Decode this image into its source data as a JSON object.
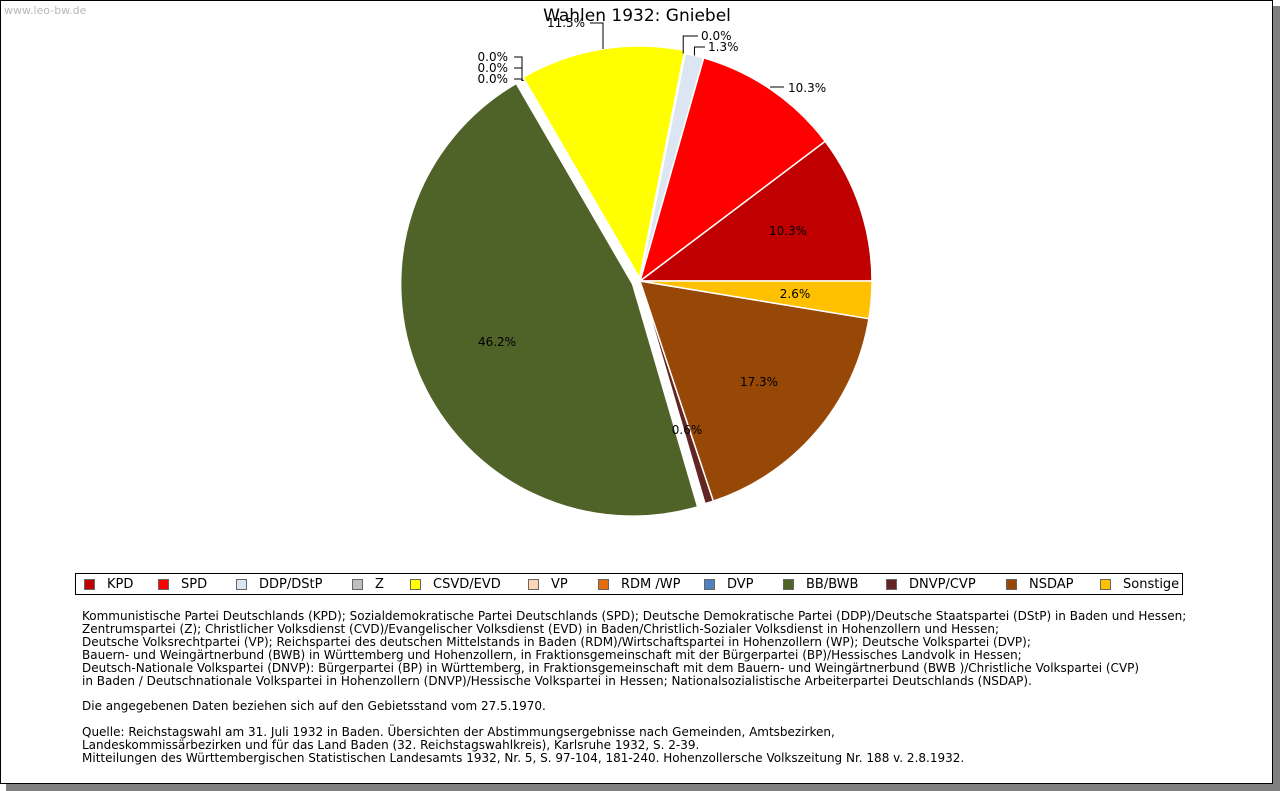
{
  "watermark": "www.leo-bw.de",
  "colors": {
    "KPD": "#c00000",
    "SPD": "#ff0000",
    "DDP": "#dce6f2",
    "Z": "#c0c0c0",
    "CSVD": "#ffff00",
    "VP": "#fcd5b4",
    "RDM": "#e46c0a",
    "DVP": "#4f81bd",
    "BB": "#4f6228",
    "DNVP": "#632523",
    "NSDAP": "#974806",
    "Sonstige": "#ffc000"
  },
  "chart_data": {
    "type": "pie",
    "title": "Wahlen 1932: Gniebel",
    "slices": [
      {
        "key": "KPD",
        "label": "KPD",
        "value": 10.3,
        "text": "10.3%"
      },
      {
        "key": "SPD",
        "label": "SPD",
        "value": 10.3,
        "text": "10.3%"
      },
      {
        "key": "DDP",
        "label": "DDP/DStP",
        "value": 1.3,
        "text": "1.3%"
      },
      {
        "key": "Z",
        "label": "Z",
        "value": 0.0,
        "text": "0.0%"
      },
      {
        "key": "CSVD",
        "label": "CSVD/EVD",
        "value": 11.5,
        "text": "11.5%"
      },
      {
        "key": "VP",
        "label": "VP",
        "value": 0.0,
        "text": "0.0%"
      },
      {
        "key": "RDM",
        "label": "RDM /WP",
        "value": 0.0,
        "text": "0.0%"
      },
      {
        "key": "DVP",
        "label": "DVP",
        "value": 0.0,
        "text": "0.0%"
      },
      {
        "key": "BB",
        "label": "BB/BWB",
        "value": 46.2,
        "text": "46.2%"
      },
      {
        "key": "DNVP",
        "label": "DNVP/CVP",
        "value": 0.6,
        "text": "0.6%"
      },
      {
        "key": "NSDAP",
        "label": "NSDAP",
        "value": 17.3,
        "text": "17.3%"
      },
      {
        "key": "Sonstige",
        "label": "Sonstige",
        "value": 2.6,
        "text": "2.6%"
      }
    ]
  },
  "legend": [
    {
      "key": "KPD",
      "label": "KPD"
    },
    {
      "key": "SPD",
      "label": "SPD"
    },
    {
      "key": "DDP",
      "label": "DDP/DStP"
    },
    {
      "key": "Z",
      "label": "Z"
    },
    {
      "key": "CSVD",
      "label": "CSVD/EVD"
    },
    {
      "key": "VP",
      "label": "VP"
    },
    {
      "key": "RDM",
      "label": "RDM /WP"
    },
    {
      "key": "DVP",
      "label": "DVP"
    },
    {
      "key": "BB",
      "label": "BB/BWB"
    },
    {
      "key": "DNVP",
      "label": "DNVP/CVP"
    },
    {
      "key": "NSDAP",
      "label": "NSDAP"
    },
    {
      "key": "Sonstige",
      "label": "Sonstige"
    }
  ],
  "notes": {
    "parties": [
      "Kommunistische Partei Deutschlands (KPD); Sozialdemokratische Partei Deutschlands (SPD); Deutsche Demokratische Partei (DDP)/Deutsche Staatspartei (DStP) in Baden und Hessen;",
      "Zentrumspartei (Z); Christlicher Volksdienst (CVD)/Evangelischer Volksdienst (EVD) in Baden/Christlich-Sozialer Volksdienst in Hohenzollern und Hessen;",
      "Deutsche Volksrechtpartei (VP); Reichspartei des deutschen Mittelstands in Baden (RDM)/Wirtschaftspartei in Hohenzollern (WP); Deutsche Volkspartei (DVP);",
      "Bauern- und Weingärtnerbund (BWB) in Württemberg und Hohenzollern, in Fraktionsgemeinschaft mit der Bürgerpartei (BP)/Hessisches Landvolk in Hessen;",
      "Deutsch-Nationale Volkspartei (DNVP): Bürgerpartei (BP) in Württemberg, in Fraktionsgemeinschaft mit dem Bauern- und Weingärtnerbund (BWB )/Christliche Volkspartei (CVP)",
      "in Baden / Deutschnationale Volkspartei in Hohenzollern (DNVP)/Hessische Volkspartei in Hessen; Nationalsozialistische Arbeiterpartei Deutschlands (NSDAP)."
    ],
    "territory": "Die angegebenen Daten beziehen sich auf den Gebietsstand vom 27.5.1970.",
    "source": [
      "Quelle: Reichstagswahl am 31. Juli 1932 in Baden. Übersichten der Abstimmungsergebnisse nach Gemeinden, Amtsbezirken,",
      "Landeskommissärbezirken und für das Land Baden (32. Reichstagswahlkreis), Karlsruhe 1932, S. 2-39.",
      "Mitteilungen des Württembergischen Statistischen Landesamts 1932, Nr. 5, S. 97-104, 181-240. Hohenzollersche Volkszeitung Nr. 188 v. 2.8.1932."
    ]
  }
}
